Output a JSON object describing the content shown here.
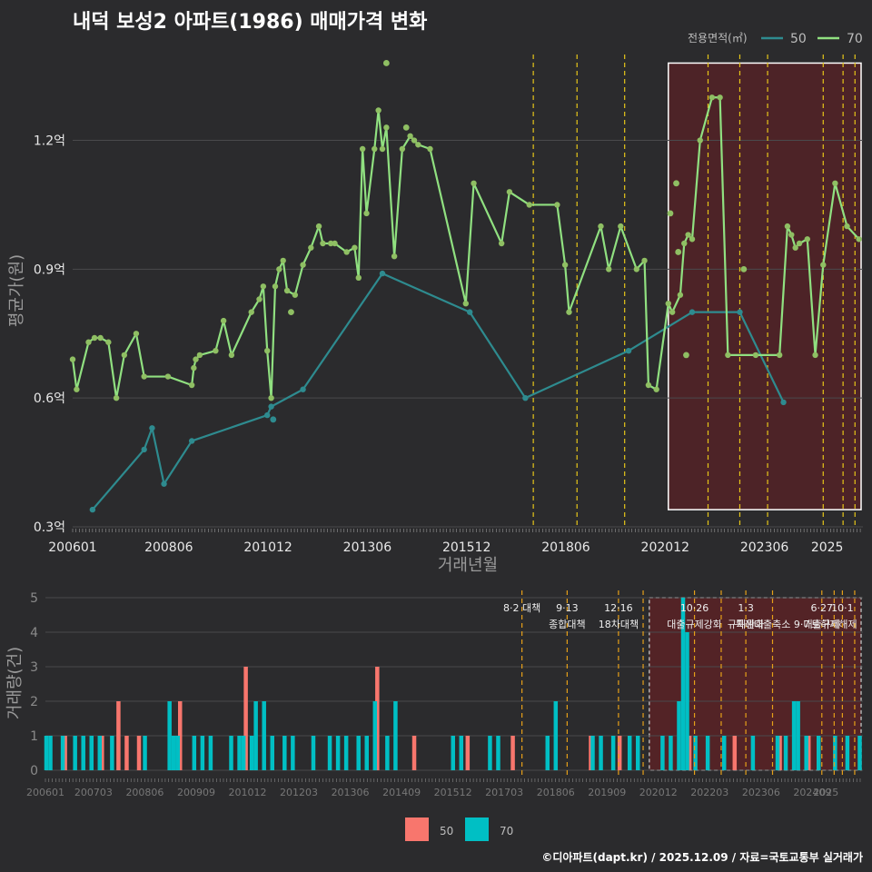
{
  "title": "내덕 보성2 아파트(1986) 매매가격 변화",
  "footer": "©디아파트(dapt.kr) / 2025.12.09 / 자료=국토교통부 실거래가",
  "colors": {
    "bg": "#2b2b2d",
    "grid": "#4a4a4c",
    "line50": "#2e8b8f",
    "line70": "#90e080",
    "pt70": "#8fbf63",
    "bar50": "#f8766d",
    "bar70": "#00bfc4",
    "vline": "#e6c619",
    "vline2": "#e6a019",
    "highlight": "#5a2226"
  },
  "chart_data": [
    {
      "type": "line",
      "title": "내덕 보성2 아파트(1986) 매매가격 변화",
      "xlabel": "거래년월",
      "ylabel": "평균가(원)",
      "ylim": [
        0.3,
        1.4
      ],
      "xlim": [
        2006.0,
        2025.9
      ],
      "yticks": [
        0.3,
        0.6,
        0.9,
        1.2
      ],
      "ytick_labels": [
        "0.3억",
        "0.6억",
        "0.9억",
        "1.2억"
      ],
      "xticks": [
        2006.0,
        2008.42,
        2010.92,
        2013.42,
        2015.92,
        2018.42,
        2020.92,
        2023.42,
        2025.0
      ],
      "xtick_labels": [
        "200601",
        "200806",
        "201012",
        "201306",
        "201512",
        "201806",
        "202012",
        "202306",
        "2025"
      ],
      "legend_title": "전용면적(㎡)",
      "legend": [
        "50",
        "70"
      ],
      "legend_position": "top-right",
      "highlight_range": [
        2021.0,
        2025.9
      ],
      "event_lines": [
        2017.6,
        2018.7,
        2019.9,
        2022.0,
        2022.8,
        2023.5,
        2024.9,
        2025.4,
        2025.7
      ],
      "series": [
        {
          "name": "50",
          "x": [
            2006.5,
            2007.8,
            2008.0,
            2008.3,
            2009.0,
            2010.9,
            2011.0,
            2011.8,
            2013.8,
            2016.0,
            2017.4,
            2020.0,
            2021.6,
            2022.8,
            2023.9
          ],
          "y": [
            0.34,
            0.48,
            0.53,
            0.4,
            0.5,
            0.56,
            0.58,
            0.62,
            0.89,
            0.8,
            0.6,
            0.71,
            0.8,
            0.8,
            0.59
          ],
          "extra_points": {
            "x": [
              2011.05
            ],
            "y": [
              0.55
            ]
          }
        },
        {
          "name": "70",
          "x": [
            2006.0,
            2006.1,
            2006.4,
            2006.55,
            2006.7,
            2006.9,
            2007.1,
            2007.3,
            2007.6,
            2007.8,
            2008.4,
            2009.0,
            2009.05,
            2009.1,
            2009.2,
            2009.6,
            2009.8,
            2010.0,
            2010.5,
            2010.7,
            2010.8,
            2010.9,
            2011.0,
            2011.1,
            2011.2,
            2011.3,
            2011.4,
            2011.6,
            2011.8,
            2012.0,
            2012.2,
            2012.3,
            2012.5,
            2012.6,
            2012.9,
            2013.1,
            2013.2,
            2013.3,
            2013.4,
            2013.6,
            2013.7,
            2013.8,
            2013.9,
            2014.1,
            2014.3,
            2014.5,
            2014.6,
            2014.7,
            2015.0,
            2015.9,
            2016.1,
            2016.8,
            2017.0,
            2017.5,
            2018.2,
            2018.4,
            2018.5,
            2019.3,
            2019.5,
            2019.8,
            2020.2,
            2020.4,
            2020.5,
            2020.7,
            2021.0,
            2021.1,
            2021.3,
            2021.4,
            2021.5,
            2021.6,
            2021.8,
            2022.1,
            2022.3,
            2022.5,
            2023.2,
            2023.8,
            2024.0,
            2024.1,
            2024.2,
            2024.3,
            2024.5,
            2024.7,
            2024.9,
            2025.2,
            2025.5,
            2025.8
          ],
          "y": [
            0.69,
            0.62,
            0.73,
            0.74,
            0.74,
            0.73,
            0.6,
            0.7,
            0.75,
            0.65,
            0.65,
            0.63,
            0.67,
            0.69,
            0.7,
            0.71,
            0.78,
            0.7,
            0.8,
            0.83,
            0.86,
            0.71,
            0.6,
            0.86,
            0.9,
            0.92,
            0.85,
            0.84,
            0.91,
            0.95,
            1.0,
            0.96,
            0.96,
            0.96,
            0.94,
            0.95,
            0.88,
            1.18,
            1.03,
            1.18,
            1.27,
            1.18,
            1.23,
            0.93,
            1.18,
            1.21,
            1.2,
            1.19,
            1.18,
            0.82,
            1.1,
            0.96,
            1.08,
            1.05,
            1.05,
            0.91,
            0.8,
            1.0,
            0.9,
            1.0,
            0.9,
            0.92,
            0.63,
            0.62,
            0.82,
            0.8,
            0.84,
            0.96,
            0.98,
            0.97,
            1.2,
            1.3,
            1.3,
            0.7,
            0.7,
            0.7,
            1.0,
            0.98,
            0.95,
            0.96,
            0.97,
            0.7,
            0.91,
            1.1,
            1.0,
            0.97
          ],
          "extra_points": {
            "x": [
              2013.9,
              2014.4,
              2011.5,
              2021.05,
              2021.2,
              2021.25,
              2021.45,
              2022.9
            ],
            "y": [
              1.38,
              1.23,
              0.8,
              1.03,
              1.1,
              0.94,
              0.7,
              0.9
            ]
          }
        }
      ]
    },
    {
      "type": "bar",
      "ylabel": "거래량(건)",
      "ylim": [
        0,
        5
      ],
      "yticks": [
        0,
        1,
        2,
        3,
        4,
        5
      ],
      "xticks": [
        2006.0,
        2007.17,
        2008.42,
        2009.67,
        2010.92,
        2012.17,
        2013.42,
        2014.67,
        2015.92,
        2017.17,
        2018.42,
        2019.67,
        2020.92,
        2022.17,
        2023.42,
        2024.67,
        2025.0
      ],
      "xtick_labels": [
        "200601",
        "200703",
        "200806",
        "200909",
        "201012",
        "201203",
        "201306",
        "201409",
        "201512",
        "201703",
        "201806",
        "201909",
        "202012",
        "202203",
        "202306",
        "202409",
        "2025"
      ],
      "legend": [
        "50",
        "70"
      ],
      "highlight_range": [
        2020.7,
        2025.9
      ],
      "events": [
        {
          "x": 2017.6,
          "line1": "8·2 대책",
          "line2": ""
        },
        {
          "x": 2018.7,
          "line1": "9·13",
          "line2": "종합대책"
        },
        {
          "x": 2019.95,
          "line1": "12·16",
          "line2": "18차대책"
        },
        {
          "x": 2020.55,
          "line1": "",
          "line2": ""
        },
        {
          "x": 2021.8,
          "line1": "10·26",
          "line2": "대출규제강화"
        },
        {
          "x": 2022.45,
          "line1": "",
          "line2": ""
        },
        {
          "x": 2023.05,
          "line1": "1·3",
          "line2": "규제완화"
        },
        {
          "x": 2023.7,
          "line1": "",
          "line2": "특례대출축소 9·7"
        },
        {
          "x": 2024.9,
          "line1": "6·27",
          "line2": "대출규제"
        },
        {
          "x": 2025.2,
          "line1": "",
          "line2": "토허제해제"
        },
        {
          "x": 2025.4,
          "line1": "10·1",
          "line2": ""
        },
        {
          "x": 2025.7,
          "line1": "",
          "line2": ""
        }
      ],
      "series": [
        {
          "name": "50",
          "x": [
            2006.5,
            2007.4,
            2007.8,
            2008.0,
            2008.3,
            2009.3,
            2010.9,
            2014.1,
            2015.0,
            2016.3,
            2017.4,
            2019.3,
            2020.0,
            2021.7,
            2022.8,
            2023.9,
            2024.6
          ],
          "values": [
            1,
            1,
            2,
            1,
            1,
            2,
            3,
            3,
            1,
            1,
            1,
            1,
            1,
            1,
            1,
            1,
            1
          ]
        },
        {
          "name": "70",
          "x": [
            2006.0,
            2006.1,
            2006.4,
            2006.7,
            2006.9,
            2007.1,
            2007.3,
            2007.6,
            2008.4,
            2009.0,
            2009.1,
            2009.2,
            2009.6,
            2009.8,
            2010.0,
            2010.5,
            2010.7,
            2010.8,
            2011.0,
            2011.1,
            2011.3,
            2011.5,
            2011.8,
            2012.0,
            2012.5,
            2012.9,
            2013.1,
            2013.3,
            2013.6,
            2013.8,
            2014.0,
            2014.3,
            2014.5,
            2015.9,
            2016.1,
            2016.8,
            2017.0,
            2018.2,
            2018.4,
            2019.3,
            2019.5,
            2019.8,
            2020.2,
            2020.4,
            2021.0,
            2021.2,
            2021.4,
            2021.5,
            2021.6,
            2021.8,
            2022.1,
            2022.5,
            2023.2,
            2023.8,
            2024.0,
            2024.2,
            2024.3,
            2024.5,
            2024.8,
            2025.2,
            2025.5,
            2025.8
          ],
          "values": [
            1,
            1,
            1,
            1,
            1,
            1,
            1,
            1,
            1,
            2,
            1,
            1,
            1,
            1,
            1,
            1,
            1,
            1,
            1,
            2,
            2,
            1,
            1,
            1,
            1,
            1,
            1,
            1,
            1,
            1,
            2,
            1,
            2,
            1,
            1,
            1,
            1,
            1,
            2,
            1,
            1,
            1,
            1,
            1,
            1,
            1,
            2,
            5,
            4,
            1,
            1,
            1,
            1,
            1,
            1,
            2,
            2,
            1,
            1,
            1,
            1,
            1
          ]
        }
      ]
    }
  ]
}
